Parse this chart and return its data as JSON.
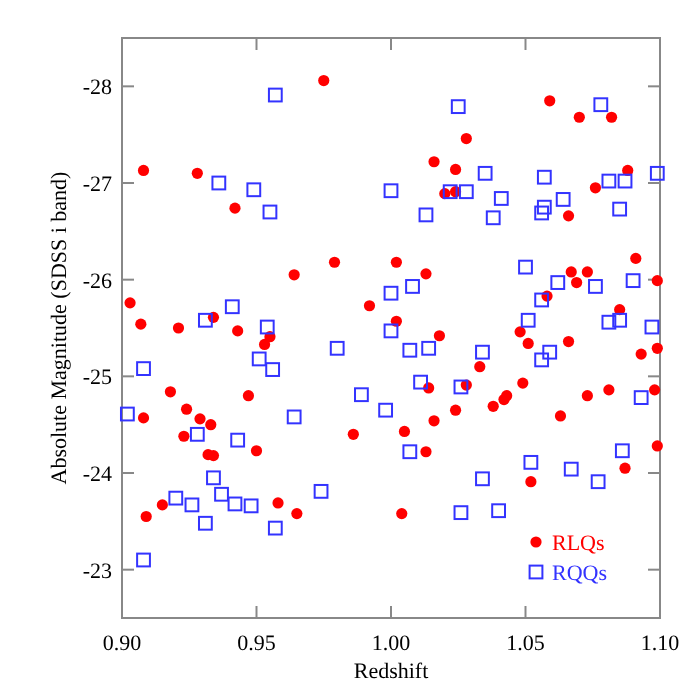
{
  "chart_data": {
    "type": "scatter",
    "xlabel": "Redshift",
    "ylabel": "Absolute Magnitude (SDSS i band)",
    "xlim": [
      0.9,
      1.1
    ],
    "xticks": [
      {
        "value": 0.9,
        "label": "0.90"
      },
      {
        "value": 0.95,
        "label": "0.95"
      },
      {
        "value": 1.0,
        "label": "1.00"
      },
      {
        "value": 1.05,
        "label": "1.05"
      },
      {
        "value": 1.1,
        "label": "1.10"
      }
    ],
    "ylim": [
      -22.5,
      -28.5
    ],
    "yticks": [
      -28,
      -27,
      -26,
      -25,
      -24,
      -23
    ],
    "grid": false,
    "legend": "bottom right",
    "series": [
      {
        "name": "RLQs",
        "color": "#ff0000",
        "marker": "circle",
        "x": [
          0.975,
          0.908,
          0.928,
          0.942,
          0.964,
          0.979,
          1.002,
          0.903,
          0.907,
          0.921,
          0.934,
          0.943,
          0.955,
          0.953,
          1.059,
          1.07,
          1.082,
          1.028,
          1.016,
          1.024,
          1.088,
          1.02,
          1.024,
          1.076,
          1.066,
          1.013,
          1.091,
          1.067,
          1.073,
          1.069,
          1.099,
          1.058,
          0.992,
          1.002,
          1.085,
          1.018,
          1.048,
          1.051,
          1.066,
          0.918,
          0.947,
          0.908,
          0.924,
          0.929,
          0.933,
          0.923,
          0.95,
          0.932,
          0.934,
          0.986,
          0.958,
          0.965,
          0.915,
          0.909,
          1.004,
          1.033,
          1.014,
          1.028,
          1.049,
          1.043,
          1.042,
          1.038,
          1.073,
          1.081,
          1.093,
          1.099,
          1.098,
          1.024,
          1.016,
          1.005,
          1.013,
          1.063,
          1.099,
          1.087,
          1.052
        ],
        "values": [
          -28.06,
          -27.13,
          -27.1,
          -26.74,
          -26.05,
          -26.18,
          -26.18,
          -25.76,
          -25.54,
          -25.5,
          -25.61,
          -25.47,
          -25.41,
          -25.33,
          -27.85,
          -27.68,
          -27.68,
          -27.46,
          -27.22,
          -27.14,
          -27.13,
          -26.89,
          -26.91,
          -26.95,
          -26.66,
          -26.06,
          -26.22,
          -26.08,
          -26.08,
          -25.97,
          -25.99,
          -25.83,
          -25.73,
          -25.57,
          -25.69,
          -25.42,
          -25.46,
          -25.34,
          -25.36,
          -24.84,
          -24.8,
          -24.57,
          -24.66,
          -24.56,
          -24.5,
          -24.38,
          -24.23,
          -24.19,
          -24.18,
          -24.4,
          -23.69,
          -23.58,
          -23.67,
          -23.55,
          -23.58,
          -25.1,
          -24.88,
          -24.91,
          -24.93,
          -24.8,
          -24.76,
          -24.69,
          -24.8,
          -24.86,
          -25.23,
          -25.29,
          -24.86,
          -24.65,
          -24.54,
          -24.43,
          -24.22,
          -24.59,
          -24.28,
          -24.05,
          -23.91
        ]
      },
      {
        "name": "RQQs",
        "color": "#3333ff",
        "marker": "square",
        "x": [
          0.957,
          0.936,
          0.949,
          0.955,
          1.0,
          1.0,
          0.941,
          0.931,
          0.954,
          1.0,
          1.025,
          1.078,
          1.035,
          1.057,
          1.099,
          1.081,
          1.087,
          1.022,
          1.028,
          1.041,
          1.064,
          1.057,
          1.056,
          1.013,
          1.038,
          1.085,
          1.05,
          1.062,
          1.076,
          1.09,
          1.008,
          1.056,
          1.051,
          1.081,
          1.085,
          1.097,
          0.98,
          0.951,
          0.956,
          0.908,
          0.902,
          0.989,
          0.998,
          0.964,
          0.928,
          0.943,
          0.934,
          0.937,
          0.942,
          0.948,
          0.92,
          0.926,
          0.931,
          0.957,
          0.974,
          0.908,
          1.007,
          1.014,
          1.034,
          1.059,
          1.056,
          1.011,
          1.026,
          1.093,
          1.007,
          1.052,
          1.034,
          1.067,
          1.077,
          1.086,
          1.026,
          1.04
        ],
        "values": [
          -27.91,
          -27.0,
          -26.93,
          -26.7,
          -26.92,
          -25.86,
          -25.72,
          -25.58,
          -25.51,
          -25.47,
          -27.79,
          -27.81,
          -27.1,
          -27.06,
          -27.1,
          -27.02,
          -27.02,
          -26.91,
          -26.91,
          -26.84,
          -26.83,
          -26.75,
          -26.69,
          -26.67,
          -26.64,
          -26.73,
          -26.13,
          -25.97,
          -25.93,
          -25.99,
          -25.93,
          -25.79,
          -25.58,
          -25.56,
          -25.58,
          -25.51,
          -25.29,
          -25.18,
          -25.07,
          -25.08,
          -24.61,
          -24.81,
          -24.65,
          -24.58,
          -24.4,
          -24.34,
          -23.95,
          -23.78,
          -23.68,
          -23.66,
          -23.74,
          -23.67,
          -23.48,
          -23.43,
          -23.81,
          -23.1,
          -25.27,
          -25.29,
          -25.25,
          -25.25,
          -25.17,
          -24.94,
          -24.89,
          -24.78,
          -24.22,
          -24.11,
          -23.94,
          -24.04,
          -23.91,
          -24.23,
          -23.59,
          -23.61
        ]
      }
    ]
  }
}
